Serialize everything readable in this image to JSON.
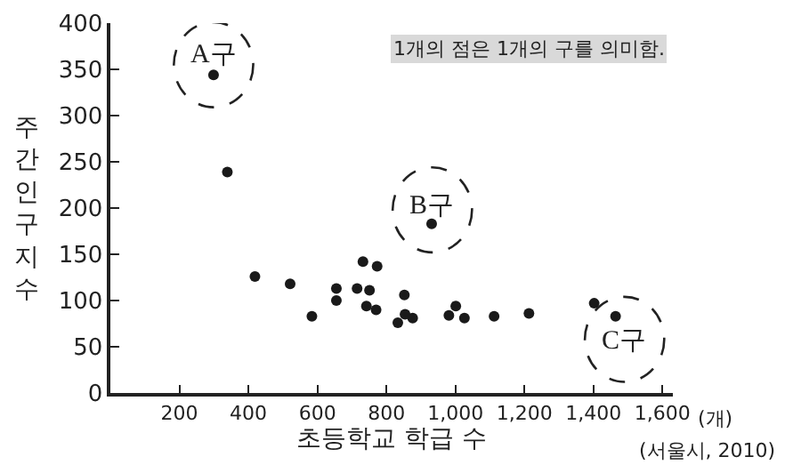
{
  "chart_data": {
    "type": "scatter",
    "xlabel": "초등학교 학급 수",
    "ylabel": "주간 인구 지수",
    "x": [
      299,
      339,
      419,
      521,
      584,
      655,
      655,
      715,
      732,
      742,
      751,
      770,
      773,
      833,
      852,
      854,
      876,
      931,
      981,
      1001,
      1026,
      1112,
      1213,
      1402,
      1464
    ],
    "series": [
      {
        "color": "#1a1a1a",
        "values": [
          344,
          239,
          126,
          118,
          83,
          113,
          100,
          113,
          142,
          94,
          111,
          90,
          137,
          76,
          106,
          85,
          81,
          183,
          84,
          94,
          81,
          83,
          86,
          97,
          83
        ]
      }
    ],
    "xlim": [
      0,
      1630
    ],
    "ylim": [
      0,
      400
    ],
    "xticks": [
      {
        "value": 200,
        "label": "200"
      },
      {
        "value": 400,
        "label": "400"
      },
      {
        "value": 600,
        "label": "600"
      },
      {
        "value": 800,
        "label": "800"
      },
      {
        "value": 1000,
        "label": "1,000"
      },
      {
        "value": 1200,
        "label": "1,200"
      },
      {
        "value": 1400,
        "label": "1,400"
      },
      {
        "value": 1600,
        "label": "1,600"
      }
    ],
    "yticks": [
      0,
      50,
      100,
      150,
      200,
      250,
      300,
      350,
      400
    ],
    "marker": "circle",
    "annotations": [
      {
        "text": "A구",
        "x": 299,
        "y": 344
      },
      {
        "text": "B구",
        "x": 931,
        "y": 183
      },
      {
        "text": "C구",
        "x": 1464,
        "y": 83
      },
      "1개의 점은 1개의 구를 의미함.",
      "(개)",
      "(서울시, 2010)"
    ]
  }
}
